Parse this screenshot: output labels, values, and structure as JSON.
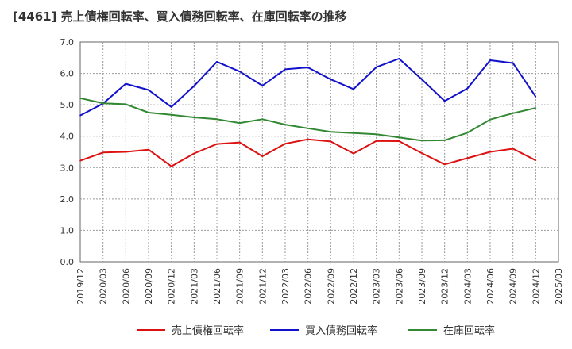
{
  "chart_data": {
    "type": "line",
    "title": "[4461]  売上債権回転率、買入債務回転率、在庫回転率の推移",
    "xlabel": "",
    "ylabel": "",
    "ylim": [
      0,
      7
    ],
    "yticks": [
      "0.0",
      "1.0",
      "2.0",
      "3.0",
      "4.0",
      "5.0",
      "6.0",
      "7.0"
    ],
    "ytick_values": [
      0,
      1,
      2,
      3,
      4,
      5,
      6,
      7
    ],
    "categories": [
      "2019/12",
      "2020/03",
      "2020/06",
      "2020/09",
      "2020/12",
      "2021/03",
      "2021/06",
      "2021/09",
      "2021/12",
      "2022/03",
      "2022/06",
      "2022/09",
      "2022/12",
      "2023/03",
      "2023/06",
      "2023/09",
      "2023/12",
      "2024/03",
      "2024/06",
      "2024/09",
      "2024/12",
      "2025/03"
    ],
    "grid": true,
    "legend_position": "bottom",
    "series": [
      {
        "name": "売上債権回転率",
        "color": "#dd1111",
        "values": [
          3.22,
          3.48,
          3.5,
          3.57,
          3.04,
          3.45,
          3.75,
          3.8,
          3.36,
          3.76,
          3.9,
          3.83,
          3.45,
          3.85,
          3.84,
          3.46,
          3.1,
          3.3,
          3.5,
          3.6,
          3.23,
          null
        ]
      },
      {
        "name": "買入債務回転率",
        "color": "#1111cc",
        "values": [
          4.66,
          5.04,
          5.67,
          5.47,
          4.93,
          5.6,
          6.37,
          6.06,
          5.61,
          6.13,
          6.19,
          5.81,
          5.5,
          6.2,
          6.47,
          5.81,
          5.12,
          5.52,
          6.42,
          6.33,
          5.26,
          null
        ]
      },
      {
        "name": "在庫回転率",
        "color": "#338833",
        "values": [
          5.21,
          5.05,
          5.02,
          4.75,
          4.68,
          4.6,
          4.54,
          4.42,
          4.54,
          4.37,
          4.25,
          4.14,
          4.1,
          4.06,
          3.96,
          3.86,
          3.87,
          4.11,
          4.53,
          4.73,
          4.9,
          null
        ]
      }
    ]
  }
}
